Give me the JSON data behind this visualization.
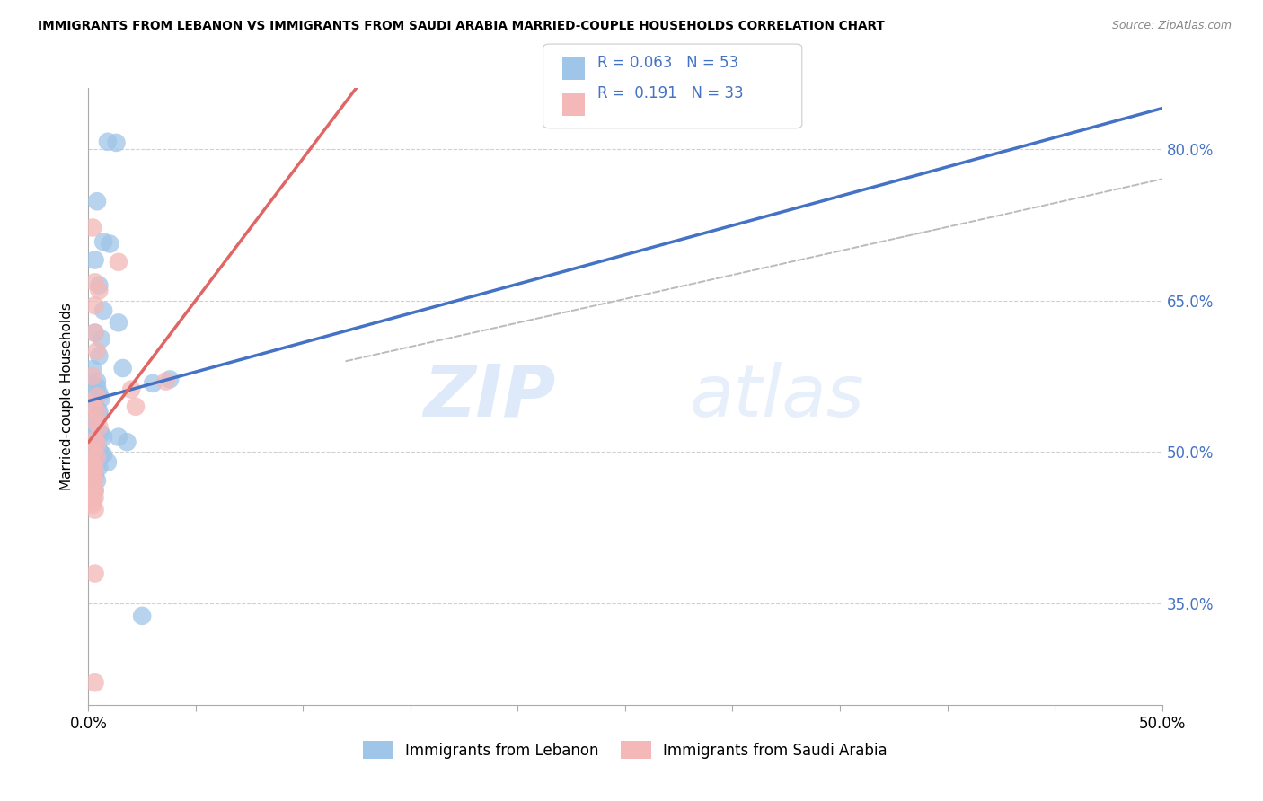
{
  "title": "IMMIGRANTS FROM LEBANON VS IMMIGRANTS FROM SAUDI ARABIA MARRIED-COUPLE HOUSEHOLDS CORRELATION CHART",
  "source": "Source: ZipAtlas.com",
  "ylabel": "Married-couple Households",
  "label_lebanon": "Immigrants from Lebanon",
  "label_saudi": "Immigrants from Saudi Arabia",
  "xlim": [
    0.0,
    0.5
  ],
  "ylim": [
    0.25,
    0.86
  ],
  "yticks": [
    0.35,
    0.5,
    0.65,
    0.8
  ],
  "ytick_labels": [
    "35.0%",
    "50.0%",
    "65.0%",
    "80.0%"
  ],
  "xtick_positions": [
    0.0,
    0.05,
    0.1,
    0.15,
    0.2,
    0.25,
    0.3,
    0.35,
    0.4,
    0.45,
    0.5
  ],
  "xtick_labels": [
    "0.0%",
    "",
    "",
    "",
    "",
    "",
    "",
    "",
    "",
    "",
    "50.0%"
  ],
  "lebanon_R": 0.063,
  "lebanon_N": 53,
  "saudi_R": 0.191,
  "saudi_N": 33,
  "color_lebanon_fill": "#9fc5e8",
  "color_saudi_fill": "#f4b8b8",
  "color_line_lebanon": "#4472c4",
  "color_line_saudi": "#e06666",
  "color_dashed": "#bbbbbb",
  "watermark_zip": "ZIP",
  "watermark_atlas": "atlas",
  "lebanon_pts_x": [
    0.009,
    0.013,
    0.004,
    0.007,
    0.01,
    0.003,
    0.005,
    0.007,
    0.003,
    0.005,
    0.002,
    0.004,
    0.006,
    0.014,
    0.003,
    0.006,
    0.005,
    0.016,
    0.002,
    0.004,
    0.005,
    0.003,
    0.004,
    0.005,
    0.002,
    0.003,
    0.004,
    0.005,
    0.006,
    0.002,
    0.003,
    0.004,
    0.005,
    0.006,
    0.007,
    0.002,
    0.003,
    0.004,
    0.005,
    0.002,
    0.003,
    0.004,
    0.002,
    0.003,
    0.014,
    0.018,
    0.03,
    0.038,
    0.025,
    0.003,
    0.005,
    0.007,
    0.009
  ],
  "lebanon_pts_y": [
    0.807,
    0.806,
    0.748,
    0.708,
    0.706,
    0.69,
    0.665,
    0.64,
    0.618,
    0.595,
    0.582,
    0.57,
    0.612,
    0.628,
    0.555,
    0.553,
    0.54,
    0.583,
    0.567,
    0.565,
    0.558,
    0.545,
    0.543,
    0.537,
    0.528,
    0.525,
    0.522,
    0.52,
    0.518,
    0.512,
    0.507,
    0.505,
    0.502,
    0.498,
    0.515,
    0.495,
    0.492,
    0.488,
    0.485,
    0.48,
    0.477,
    0.472,
    0.465,
    0.462,
    0.515,
    0.51,
    0.568,
    0.572,
    0.338,
    0.507,
    0.5,
    0.497,
    0.49
  ],
  "saudi_pts_x": [
    0.002,
    0.014,
    0.003,
    0.005,
    0.003,
    0.003,
    0.004,
    0.002,
    0.004,
    0.002,
    0.004,
    0.003,
    0.005,
    0.003,
    0.004,
    0.002,
    0.004,
    0.002,
    0.003,
    0.002,
    0.003,
    0.002,
    0.003,
    0.002,
    0.003,
    0.002,
    0.003,
    0.02,
    0.022,
    0.002,
    0.003,
    0.036,
    0.003
  ],
  "saudi_pts_y": [
    0.722,
    0.688,
    0.668,
    0.66,
    0.645,
    0.618,
    0.6,
    0.575,
    0.555,
    0.545,
    0.54,
    0.53,
    0.525,
    0.512,
    0.508,
    0.5,
    0.495,
    0.488,
    0.483,
    0.478,
    0.473,
    0.468,
    0.462,
    0.458,
    0.455,
    0.448,
    0.443,
    0.562,
    0.545,
    0.45,
    0.38,
    0.57,
    0.272
  ]
}
